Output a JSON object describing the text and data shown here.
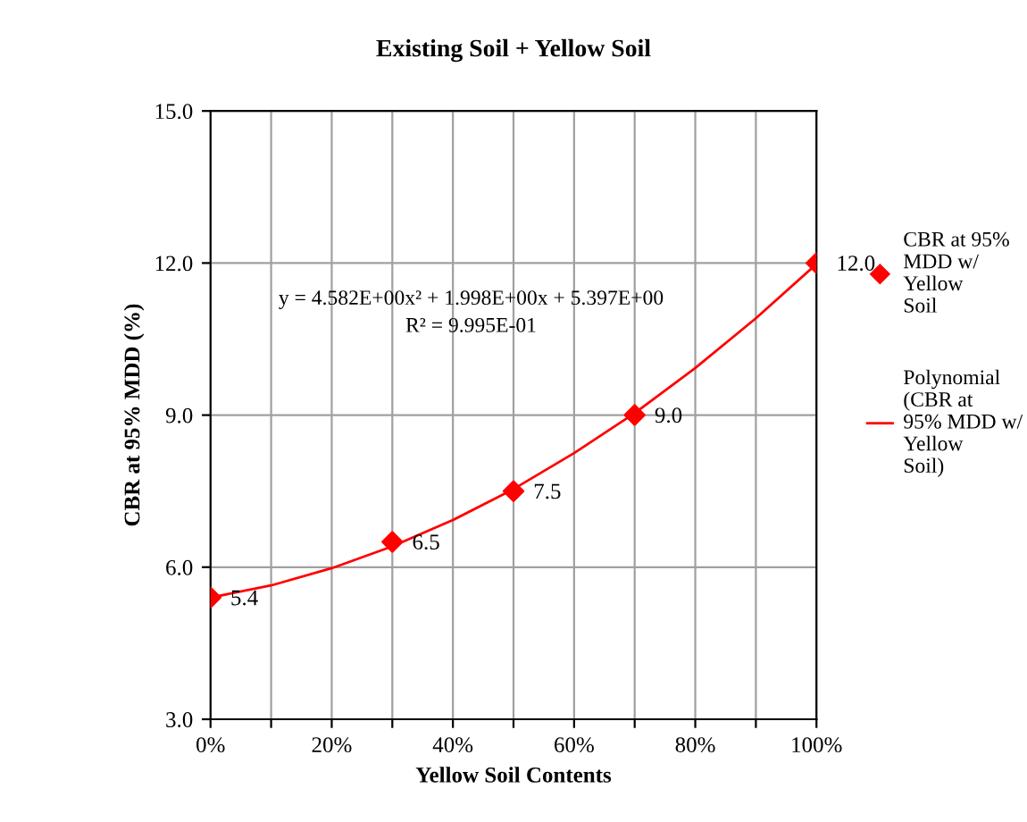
{
  "chart_data": {
    "type": "scatter",
    "title": "Existing Soil + Yellow Soil",
    "xlabel": "Yellow Soil Contents",
    "ylabel": "CBR at 95% MDD (%)",
    "xlim": [
      0,
      100
    ],
    "ylim": [
      3,
      15
    ],
    "xticks": [
      {
        "value": 0,
        "label": "0%"
      },
      {
        "value": 10,
        "label": null
      },
      {
        "value": 20,
        "label": "20%"
      },
      {
        "value": 30,
        "label": null
      },
      {
        "value": 40,
        "label": "40%"
      },
      {
        "value": 50,
        "label": null
      },
      {
        "value": 60,
        "label": "60%"
      },
      {
        "value": 70,
        "label": null
      },
      {
        "value": 80,
        "label": "80%"
      },
      {
        "value": 90,
        "label": null
      },
      {
        "value": 100,
        "label": "100%"
      }
    ],
    "yticks": [
      {
        "value": 3,
        "label": "3.0"
      },
      {
        "value": 6,
        "label": "6.0"
      },
      {
        "value": 9,
        "label": "9.0"
      },
      {
        "value": 12,
        "label": "12.0"
      },
      {
        "value": 15,
        "label": "15.0"
      }
    ],
    "grid": true,
    "legend": "right",
    "series": [
      {
        "name": "CBR at 95% MDD w/ Yellow Soil",
        "color": "#ff0000",
        "marker": "diamond",
        "x": [
          0,
          30,
          50,
          70,
          100
        ],
        "values": [
          5.4,
          6.5,
          7.5,
          9.0,
          12.0
        ],
        "value_labels": [
          "5.4",
          "6.5",
          "7.5",
          "9.0",
          "12.0"
        ]
      },
      {
        "name": "Polynomial (CBR at 95% MDD w/ Yellow Soil)",
        "type": "line",
        "color": "#ff0000",
        "line_style": "solid",
        "marker": "none",
        "x": [
          0,
          10,
          20,
          30,
          40,
          50,
          60,
          70,
          80,
          90,
          100
        ],
        "values": [
          5.4,
          5.64,
          5.98,
          6.41,
          6.93,
          7.54,
          8.25,
          9.04,
          9.93,
          10.91,
          11.98
        ]
      }
    ],
    "annotations": [
      "y = 4.582E+00x² + 1.998E+00x + 5.397E+00",
      "R² = 9.995E-01"
    ]
  }
}
